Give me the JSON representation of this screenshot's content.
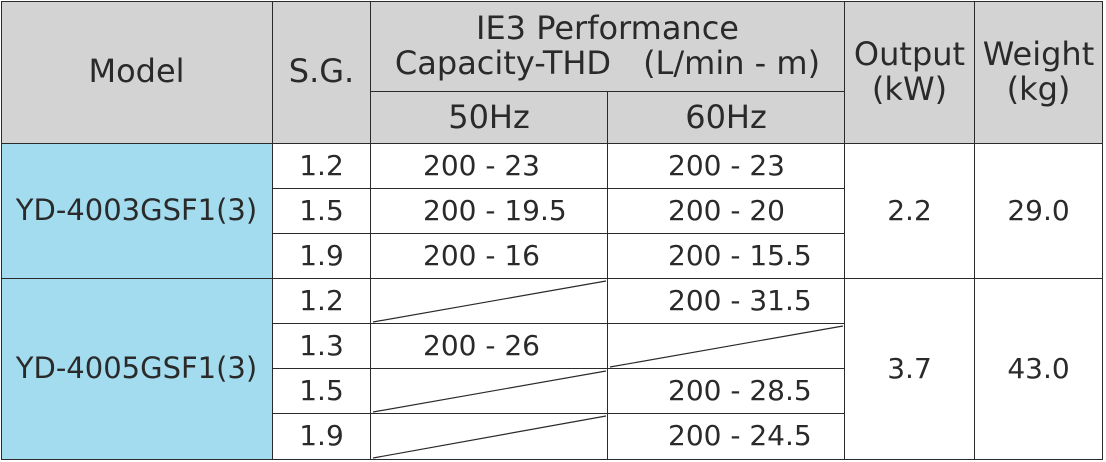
{
  "header": {
    "model": "Model",
    "sg": "S.G.",
    "performance_line1": "IE3  Performance",
    "performance_line2": "Capacity-THD　(L/min - m)",
    "hz50": "50Hz",
    "hz60": "60Hz",
    "output_line1": "Output",
    "output_line2": "(kW)",
    "weight_line1": "Weight",
    "weight_line2": "(kg)"
  },
  "groups": [
    {
      "model": "YD-4003GSF1(3)",
      "output": "2.2",
      "weight": "29.0",
      "rows": [
        {
          "sg": "1.2",
          "hz50": "200 - 23",
          "hz60": "200 - 23"
        },
        {
          "sg": "1.5",
          "hz50": "200 - 19.5",
          "hz60": "200 - 20"
        },
        {
          "sg": "1.9",
          "hz50": "200 - 16",
          "hz60": "200 - 15.5"
        }
      ]
    },
    {
      "model": "YD-4005GSF1(3)",
      "output": "3.7",
      "weight": "43.0",
      "rows": [
        {
          "sg": "1.2",
          "hz50": "",
          "hz60": "200 - 31.5"
        },
        {
          "sg": "1.3",
          "hz50": "200 - 26",
          "hz60": ""
        },
        {
          "sg": "1.5",
          "hz50": "",
          "hz60": "200 - 28.5"
        },
        {
          "sg": "1.9",
          "hz50": "",
          "hz60": "200 - 24.5"
        }
      ]
    }
  ]
}
